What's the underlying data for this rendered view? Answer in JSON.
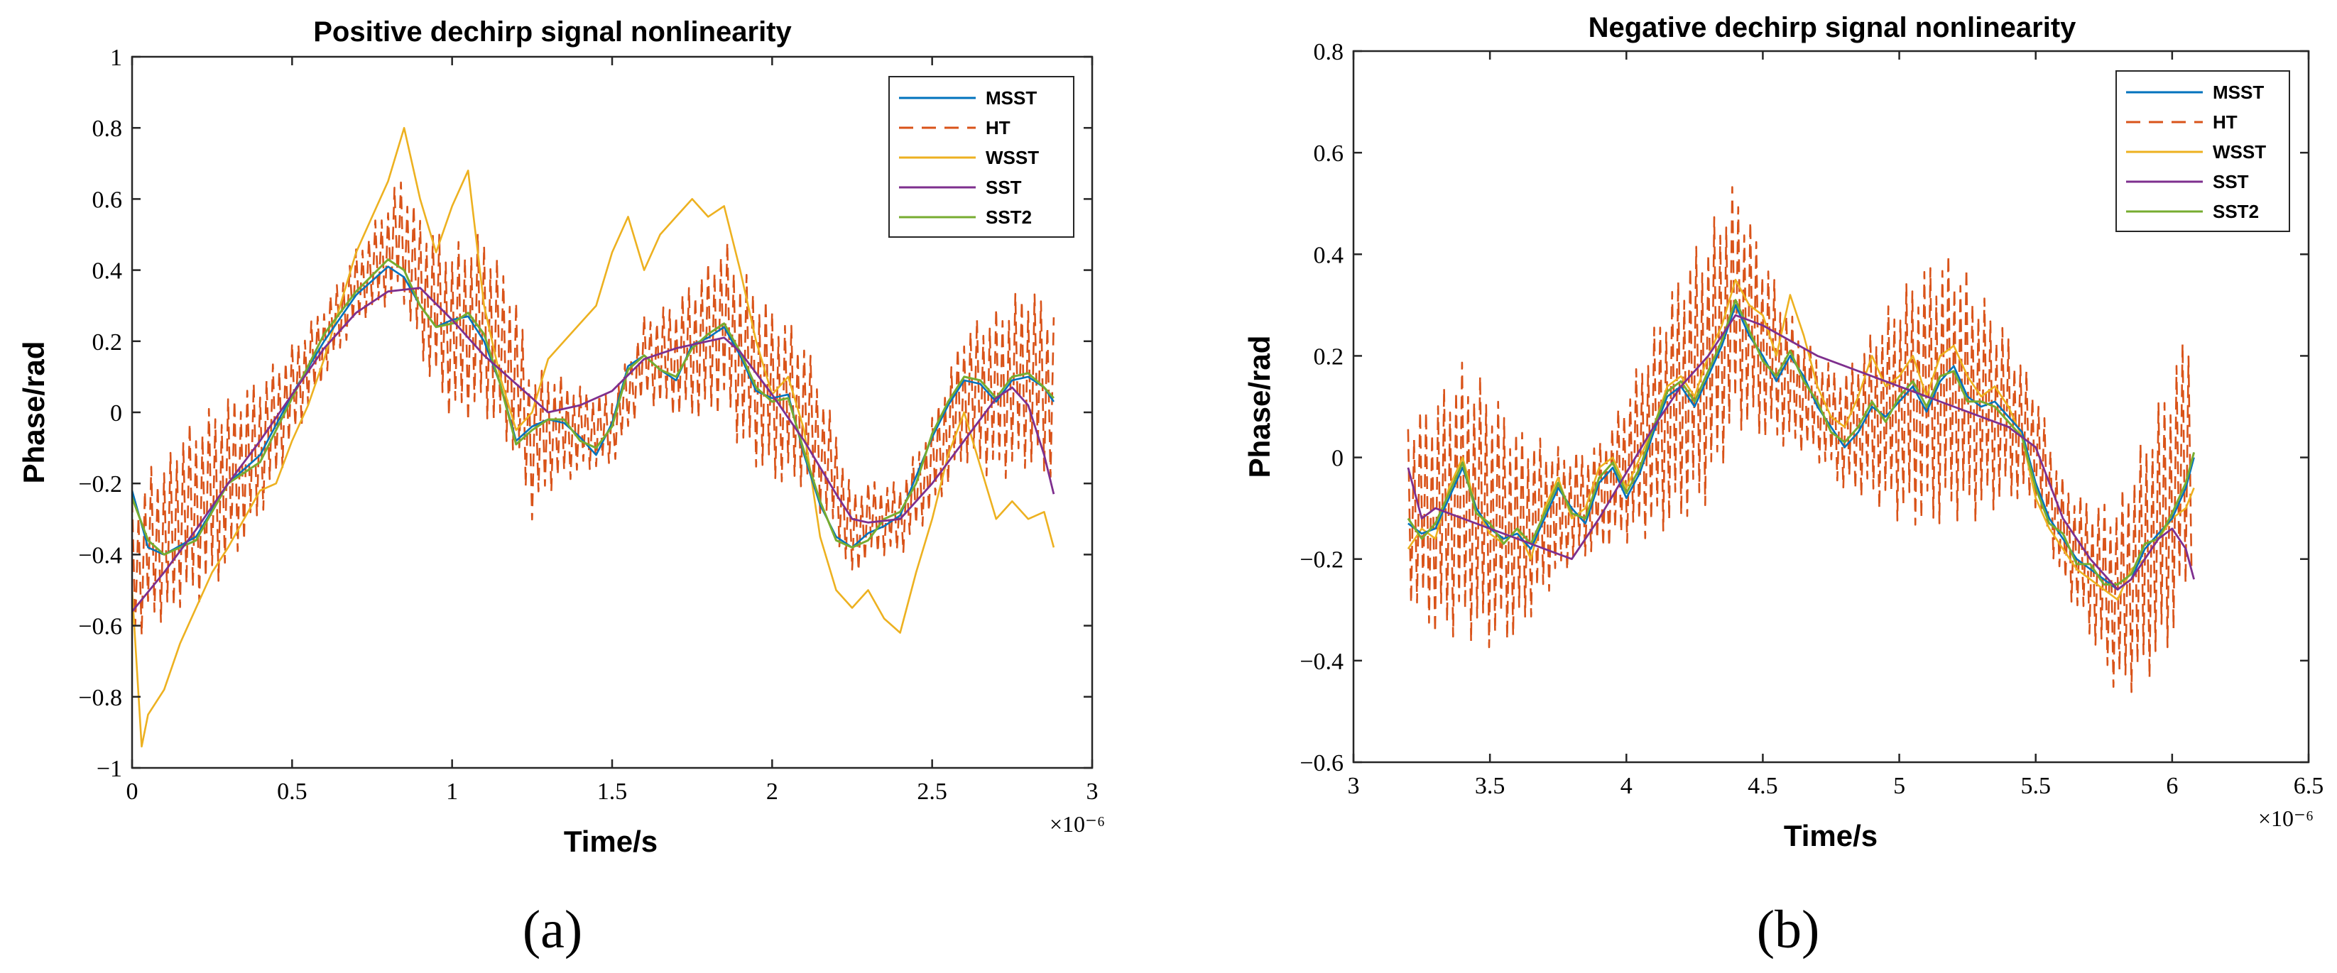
{
  "colors": {
    "MSST": "#0072BD",
    "HT": "#D95319",
    "WSST": "#EDB120",
    "SST": "#7E2F8E",
    "SST2": "#77AC30"
  },
  "chart_data": [
    {
      "type": "line",
      "panel_label": "(a)",
      "title": "Positive dechirp signal nonlinearity",
      "xlabel": "Time/s",
      "ylabel": "Phase/rad",
      "x_exponent": "×10⁻⁶",
      "xlim": [
        0,
        3
      ],
      "ylim": [
        -1,
        1
      ],
      "xticks": [
        "0",
        "0.5",
        "1",
        "1.5",
        "2",
        "2.5",
        "3"
      ],
      "yticks": [
        "−1",
        "−0.8",
        "−0.6",
        "−0.4",
        "−0.2",
        "0",
        "0.2",
        "0.4",
        "0.6",
        "0.8",
        "1"
      ],
      "grid": false,
      "legend": "top-right",
      "x_range_data": [
        0,
        2.88
      ],
      "series": [
        {
          "name": "MSST",
          "style": "solid",
          "x": [
            0,
            0.05,
            0.1,
            0.2,
            0.3,
            0.4,
            0.5,
            0.6,
            0.7,
            0.8,
            0.85,
            0.9,
            0.95,
            1.0,
            1.05,
            1.1,
            1.15,
            1.2,
            1.25,
            1.3,
            1.35,
            1.4,
            1.45,
            1.5,
            1.55,
            1.6,
            1.65,
            1.7,
            1.75,
            1.8,
            1.85,
            1.9,
            1.95,
            2.0,
            2.05,
            2.1,
            2.15,
            2.2,
            2.25,
            2.3,
            2.35,
            2.4,
            2.45,
            2.5,
            2.55,
            2.6,
            2.65,
            2.7,
            2.75,
            2.8,
            2.85,
            2.88
          ],
          "y": [
            -0.22,
            -0.38,
            -0.4,
            -0.35,
            -0.2,
            -0.12,
            0.05,
            0.2,
            0.33,
            0.41,
            0.38,
            0.3,
            0.24,
            0.26,
            0.27,
            0.2,
            0.08,
            -0.08,
            -0.04,
            -0.02,
            -0.03,
            -0.07,
            -0.12,
            -0.03,
            0.13,
            0.16,
            0.12,
            0.09,
            0.19,
            0.21,
            0.24,
            0.16,
            0.06,
            0.04,
            0.05,
            -0.12,
            -0.26,
            -0.35,
            -0.38,
            -0.34,
            -0.32,
            -0.29,
            -0.18,
            -0.07,
            0.02,
            0.09,
            0.08,
            0.03,
            0.09,
            0.1,
            0.07,
            0.03
          ]
        },
        {
          "name": "HT",
          "style": "dashed",
          "x": [
            0,
            0.03,
            0.06,
            0.1,
            0.15,
            0.2,
            0.3,
            0.4,
            0.5,
            0.6,
            0.7,
            0.8,
            0.84,
            0.9,
            1.0,
            1.1,
            1.2,
            1.25,
            1.3,
            1.4,
            1.5,
            1.6,
            1.7,
            1.8,
            1.85,
            1.9,
            2.0,
            2.1,
            2.2,
            2.25,
            2.3,
            2.4,
            2.5,
            2.6,
            2.7,
            2.8,
            2.88
          ],
          "y": [
            -0.4,
            -0.45,
            -0.35,
            -0.38,
            -0.3,
            -0.28,
            -0.2,
            -0.1,
            0.05,
            0.2,
            0.35,
            0.45,
            0.5,
            0.35,
            0.22,
            0.25,
            0.1,
            -0.1,
            -0.05,
            -0.05,
            -0.05,
            0.15,
            0.15,
            0.2,
            0.25,
            0.15,
            0.05,
            0.0,
            -0.2,
            -0.35,
            -0.3,
            -0.3,
            -0.15,
            0.05,
            0.05,
            0.1,
            0.05
          ],
          "amp": 0.26,
          "period": 0.02
        },
        {
          "name": "WSST",
          "style": "solid",
          "x": [
            0,
            0.03,
            0.05,
            0.1,
            0.15,
            0.2,
            0.25,
            0.3,
            0.35,
            0.4,
            0.45,
            0.5,
            0.55,
            0.6,
            0.65,
            0.7,
            0.75,
            0.8,
            0.85,
            0.9,
            0.95,
            1.0,
            1.05,
            1.1,
            1.15,
            1.2,
            1.25,
            1.3,
            1.35,
            1.4,
            1.45,
            1.5,
            1.55,
            1.6,
            1.65,
            1.7,
            1.75,
            1.8,
            1.85,
            1.9,
            1.95,
            2.0,
            2.05,
            2.1,
            2.15,
            2.2,
            2.25,
            2.3,
            2.35,
            2.4,
            2.45,
            2.5,
            2.55,
            2.6,
            2.65,
            2.7,
            2.75,
            2.8,
            2.85,
            2.88
          ],
          "y": [
            -0.5,
            -0.94,
            -0.85,
            -0.78,
            -0.65,
            -0.55,
            -0.45,
            -0.38,
            -0.3,
            -0.22,
            -0.2,
            -0.08,
            0.02,
            0.15,
            0.3,
            0.45,
            0.55,
            0.65,
            0.8,
            0.6,
            0.45,
            0.58,
            0.68,
            0.3,
            0.1,
            -0.05,
            0.0,
            0.15,
            0.2,
            0.25,
            0.3,
            0.45,
            0.55,
            0.4,
            0.5,
            0.55,
            0.6,
            0.55,
            0.58,
            0.4,
            0.2,
            0.05,
            0.1,
            -0.05,
            -0.35,
            -0.5,
            -0.55,
            -0.5,
            -0.58,
            -0.62,
            -0.45,
            -0.3,
            -0.12,
            0.0,
            -0.15,
            -0.3,
            -0.25,
            -0.3,
            -0.28,
            -0.38
          ]
        },
        {
          "name": "SST",
          "style": "solid",
          "x": [
            0,
            0.1,
            0.2,
            0.3,
            0.4,
            0.5,
            0.6,
            0.7,
            0.8,
            0.9,
            1.0,
            1.1,
            1.2,
            1.3,
            1.4,
            1.5,
            1.6,
            1.7,
            1.8,
            1.85,
            1.9,
            2.0,
            2.1,
            2.2,
            2.25,
            2.3,
            2.4,
            2.5,
            2.6,
            2.7,
            2.75,
            2.8,
            2.85,
            2.88
          ],
          "y": [
            -0.56,
            -0.45,
            -0.33,
            -0.2,
            -0.08,
            0.05,
            0.18,
            0.28,
            0.34,
            0.35,
            0.26,
            0.16,
            0.08,
            0.0,
            0.02,
            0.06,
            0.15,
            0.18,
            0.2,
            0.21,
            0.17,
            0.05,
            -0.08,
            -0.23,
            -0.3,
            -0.31,
            -0.3,
            -0.2,
            -0.08,
            0.04,
            0.07,
            0.02,
            -0.12,
            -0.23
          ]
        },
        {
          "name": "SST2",
          "style": "solid",
          "x": [
            0,
            0.05,
            0.1,
            0.2,
            0.3,
            0.4,
            0.5,
            0.6,
            0.7,
            0.8,
            0.85,
            0.9,
            0.95,
            1.0,
            1.05,
            1.1,
            1.15,
            1.2,
            1.25,
            1.3,
            1.35,
            1.4,
            1.45,
            1.5,
            1.55,
            1.6,
            1.65,
            1.7,
            1.75,
            1.8,
            1.85,
            1.9,
            1.95,
            2.0,
            2.05,
            2.1,
            2.15,
            2.2,
            2.25,
            2.3,
            2.35,
            2.4,
            2.45,
            2.5,
            2.55,
            2.6,
            2.65,
            2.7,
            2.75,
            2.8,
            2.85,
            2.88
          ],
          "y": [
            -0.24,
            -0.36,
            -0.4,
            -0.36,
            -0.2,
            -0.14,
            0.04,
            0.22,
            0.34,
            0.43,
            0.4,
            0.3,
            0.24,
            0.25,
            0.28,
            0.22,
            0.08,
            -0.09,
            -0.05,
            -0.02,
            -0.02,
            -0.08,
            -0.1,
            -0.04,
            0.12,
            0.16,
            0.12,
            0.1,
            0.18,
            0.22,
            0.25,
            0.17,
            0.07,
            0.03,
            0.04,
            -0.11,
            -0.25,
            -0.36,
            -0.38,
            -0.36,
            -0.3,
            -0.28,
            -0.2,
            -0.06,
            0.03,
            0.1,
            0.09,
            0.04,
            0.1,
            0.11,
            0.07,
            0.04
          ]
        }
      ]
    },
    {
      "type": "line",
      "panel_label": "(b)",
      "title": "Negative dechirp signal nonlinearity",
      "xlabel": "Time/s",
      "ylabel": "Phase/rad",
      "x_exponent": "×10⁻⁶",
      "xlim": [
        3,
        6.5
      ],
      "ylim": [
        -0.6,
        0.8
      ],
      "xticks": [
        "3",
        "3.5",
        "4",
        "4.5",
        "5",
        "5.5",
        "6",
        "6.5"
      ],
      "yticks": [
        "−0.6",
        "−0.4",
        "−0.2",
        "0",
        "0.2",
        "0.4",
        "0.6",
        "0.8"
      ],
      "grid": false,
      "legend": "top-right",
      "x_range_data": [
        3.2,
        6.08
      ],
      "series": [
        {
          "name": "MSST",
          "style": "solid",
          "x": [
            3.2,
            3.25,
            3.3,
            3.35,
            3.4,
            3.45,
            3.5,
            3.55,
            3.6,
            3.65,
            3.7,
            3.75,
            3.8,
            3.85,
            3.9,
            3.95,
            4.0,
            4.05,
            4.1,
            4.15,
            4.2,
            4.25,
            4.3,
            4.35,
            4.4,
            4.45,
            4.5,
            4.55,
            4.6,
            4.65,
            4.7,
            4.75,
            4.8,
            4.85,
            4.9,
            4.95,
            5.0,
            5.05,
            5.1,
            5.15,
            5.2,
            5.25,
            5.3,
            5.35,
            5.4,
            5.45,
            5.5,
            5.55,
            5.6,
            5.65,
            5.7,
            5.75,
            5.8,
            5.85,
            5.9,
            5.95,
            6.0,
            6.05,
            6.08
          ],
          "y": [
            -0.13,
            -0.15,
            -0.14,
            -0.08,
            -0.02,
            -0.1,
            -0.14,
            -0.16,
            -0.15,
            -0.18,
            -0.12,
            -0.06,
            -0.1,
            -0.13,
            -0.05,
            -0.02,
            -0.08,
            -0.03,
            0.05,
            0.12,
            0.14,
            0.1,
            0.16,
            0.22,
            0.3,
            0.24,
            0.2,
            0.15,
            0.2,
            0.16,
            0.1,
            0.06,
            0.02,
            0.05,
            0.1,
            0.08,
            0.11,
            0.14,
            0.09,
            0.15,
            0.18,
            0.12,
            0.1,
            0.11,
            0.08,
            0.05,
            -0.05,
            -0.12,
            -0.16,
            -0.2,
            -0.22,
            -0.24,
            -0.26,
            -0.24,
            -0.18,
            -0.15,
            -0.12,
            -0.06,
            0.0
          ]
        },
        {
          "name": "HT",
          "style": "dashed",
          "x": [
            3.2,
            3.3,
            3.4,
            3.5,
            3.6,
            3.7,
            3.8,
            3.9,
            4.0,
            4.1,
            4.2,
            4.3,
            4.4,
            4.5,
            4.6,
            4.7,
            4.8,
            4.9,
            5.0,
            5.1,
            5.2,
            5.3,
            5.4,
            5.5,
            5.6,
            5.7,
            5.8,
            5.9,
            6.0,
            6.08
          ],
          "y": [
            -0.1,
            -0.12,
            -0.08,
            -0.12,
            -0.15,
            -0.12,
            -0.1,
            -0.08,
            -0.02,
            0.05,
            0.12,
            0.18,
            0.3,
            0.22,
            0.15,
            0.1,
            0.05,
            0.08,
            0.1,
            0.12,
            0.14,
            0.1,
            0.08,
            0.02,
            -0.15,
            -0.22,
            -0.28,
            -0.2,
            -0.1,
            0.05
          ],
          "amp": 0.27,
          "period": 0.022
        },
        {
          "name": "WSST",
          "style": "solid",
          "x": [
            3.2,
            3.25,
            3.3,
            3.35,
            3.4,
            3.45,
            3.5,
            3.55,
            3.6,
            3.65,
            3.7,
            3.75,
            3.8,
            3.85,
            3.9,
            3.95,
            4.0,
            4.05,
            4.1,
            4.15,
            4.2,
            4.25,
            4.3,
            4.35,
            4.4,
            4.45,
            4.5,
            4.55,
            4.6,
            4.65,
            4.7,
            4.75,
            4.8,
            4.85,
            4.9,
            4.95,
            5.0,
            5.05,
            5.1,
            5.15,
            5.2,
            5.25,
            5.3,
            5.35,
            5.4,
            5.45,
            5.5,
            5.55,
            5.6,
            5.65,
            5.7,
            5.75,
            5.8,
            5.85,
            5.9,
            5.95,
            6.0,
            6.05,
            6.08
          ],
          "y": [
            -0.18,
            -0.14,
            -0.16,
            -0.06,
            0.0,
            -0.1,
            -0.15,
            -0.17,
            -0.14,
            -0.2,
            -0.1,
            -0.04,
            -0.12,
            -0.1,
            -0.02,
            0.0,
            -0.06,
            0.0,
            0.06,
            0.14,
            0.16,
            0.12,
            0.2,
            0.26,
            0.35,
            0.3,
            0.28,
            0.2,
            0.32,
            0.24,
            0.14,
            0.08,
            0.06,
            0.12,
            0.2,
            0.14,
            0.16,
            0.2,
            0.12,
            0.2,
            0.22,
            0.16,
            0.12,
            0.14,
            0.1,
            0.04,
            -0.08,
            -0.14,
            -0.18,
            -0.22,
            -0.24,
            -0.26,
            -0.28,
            -0.22,
            -0.2,
            -0.16,
            -0.12,
            -0.1,
            -0.06
          ]
        },
        {
          "name": "SST",
          "style": "solid",
          "x": [
            3.2,
            3.25,
            3.3,
            3.4,
            3.5,
            3.6,
            3.7,
            3.8,
            3.9,
            4.0,
            4.1,
            4.2,
            4.3,
            4.4,
            4.5,
            4.6,
            4.7,
            4.8,
            4.9,
            5.0,
            5.1,
            5.2,
            5.3,
            5.4,
            5.5,
            5.6,
            5.7,
            5.8,
            5.85,
            5.9,
            5.95,
            6.0,
            6.05,
            6.08
          ],
          "y": [
            -0.02,
            -0.12,
            -0.1,
            -0.12,
            -0.14,
            -0.16,
            -0.18,
            -0.2,
            -0.12,
            -0.03,
            0.06,
            0.14,
            0.2,
            0.28,
            0.26,
            0.23,
            0.2,
            0.18,
            0.16,
            0.14,
            0.12,
            0.1,
            0.08,
            0.06,
            0.02,
            -0.12,
            -0.2,
            -0.26,
            -0.24,
            -0.2,
            -0.16,
            -0.14,
            -0.18,
            -0.24
          ]
        },
        {
          "name": "SST2",
          "style": "solid",
          "x": [
            3.2,
            3.25,
            3.3,
            3.35,
            3.4,
            3.45,
            3.5,
            3.55,
            3.6,
            3.65,
            3.7,
            3.75,
            3.8,
            3.85,
            3.9,
            3.95,
            4.0,
            4.05,
            4.1,
            4.15,
            4.2,
            4.25,
            4.3,
            4.35,
            4.4,
            4.45,
            4.5,
            4.55,
            4.6,
            4.65,
            4.7,
            4.75,
            4.8,
            4.85,
            4.9,
            4.95,
            5.0,
            5.05,
            5.1,
            5.15,
            5.2,
            5.25,
            5.3,
            5.35,
            5.4,
            5.45,
            5.5,
            5.55,
            5.6,
            5.65,
            5.7,
            5.75,
            5.8,
            5.85,
            5.9,
            5.95,
            6.0,
            6.05,
            6.08
          ],
          "y": [
            -0.12,
            -0.16,
            -0.13,
            -0.07,
            -0.01,
            -0.11,
            -0.13,
            -0.17,
            -0.14,
            -0.17,
            -0.11,
            -0.05,
            -0.11,
            -0.12,
            -0.04,
            -0.01,
            -0.07,
            -0.02,
            0.06,
            0.13,
            0.15,
            0.11,
            0.17,
            0.23,
            0.31,
            0.25,
            0.19,
            0.16,
            0.21,
            0.15,
            0.11,
            0.05,
            0.03,
            0.06,
            0.11,
            0.07,
            0.12,
            0.15,
            0.1,
            0.16,
            0.17,
            0.11,
            0.11,
            0.1,
            0.07,
            0.04,
            -0.06,
            -0.13,
            -0.15,
            -0.21,
            -0.21,
            -0.25,
            -0.25,
            -0.23,
            -0.17,
            -0.16,
            -0.11,
            -0.05,
            0.01
          ]
        }
      ]
    }
  ]
}
